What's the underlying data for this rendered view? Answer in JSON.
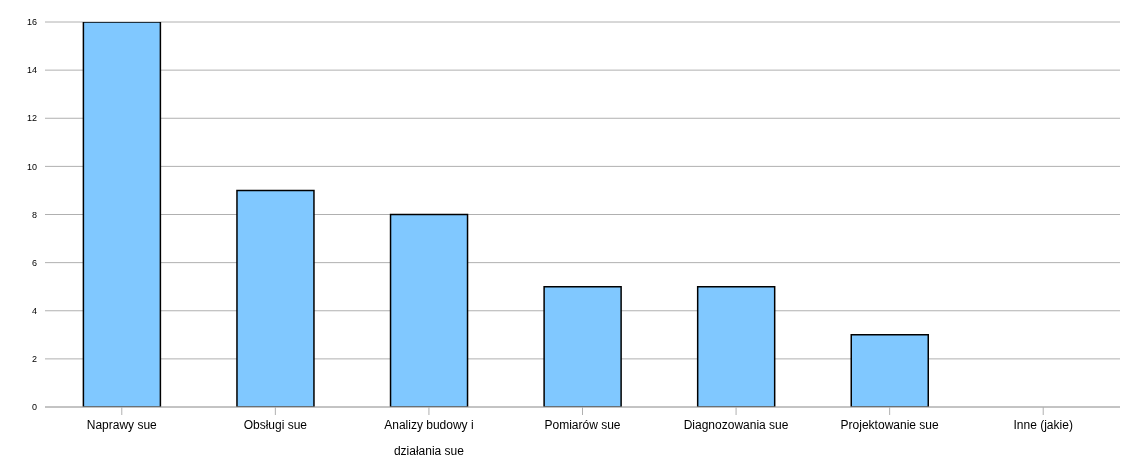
{
  "chart_data": {
    "type": "bar",
    "categories": [
      "Naprawy sue",
      "Obsługi sue",
      "Analizy budowy i działania sue",
      "Pomiarów sue",
      "Diagnozowania sue",
      "Projektowanie sue",
      "Inne (jakie)"
    ],
    "values": [
      16,
      9,
      8,
      5,
      5,
      3,
      0
    ],
    "color": "#80c8ff",
    "ylim": [
      0,
      16
    ],
    "yticks": [
      0,
      2,
      4,
      6,
      8,
      10,
      12,
      14,
      16
    ],
    "grid": "y"
  }
}
